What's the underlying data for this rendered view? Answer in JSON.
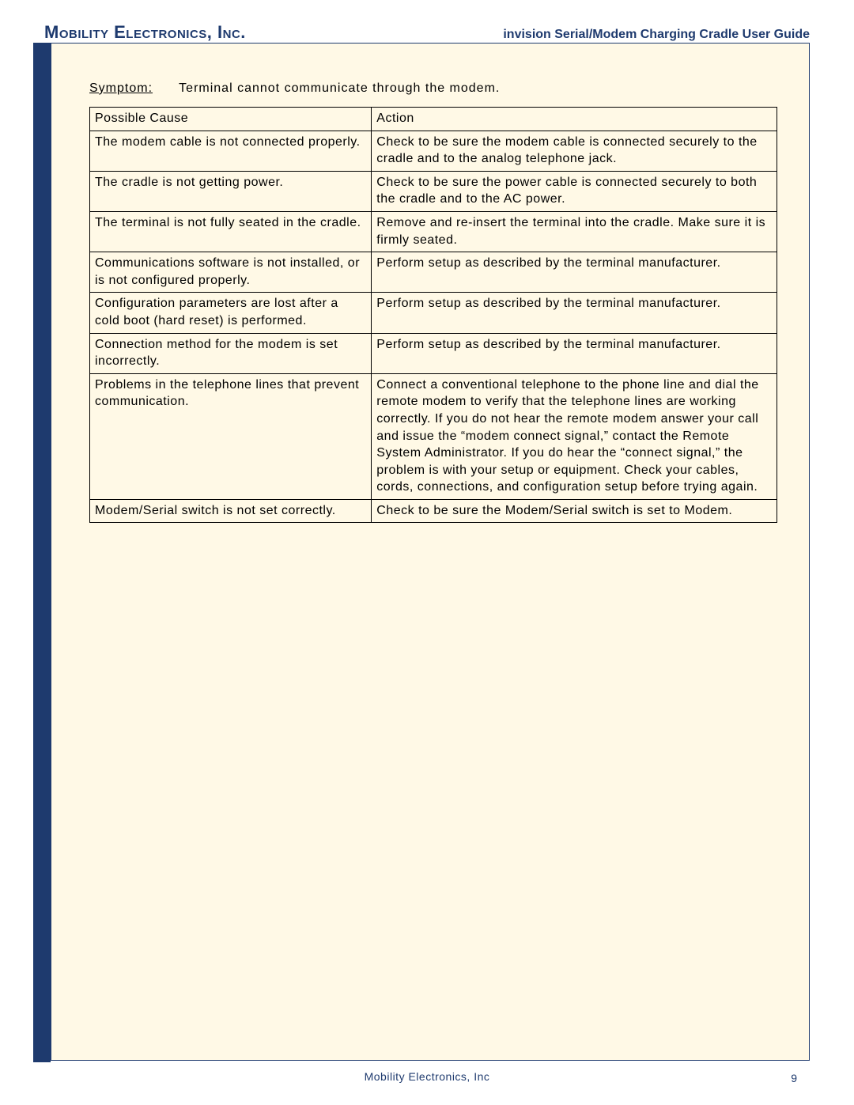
{
  "colors": {
    "brand_blue": "#1e3a6e",
    "cream_bg": "#fff9e6",
    "table_border": "#000000",
    "frame_border": "#1e3a6e",
    "text_black": "#000000"
  },
  "fonts": {
    "header_company_size": 22,
    "header_company_weight": "bold",
    "header_doc_size": 16,
    "header_doc_weight": "bold",
    "body_size": 16,
    "table_size": 16,
    "footer_size": 14,
    "page_num_size": 14
  },
  "header": {
    "company": "Mobility Electronics, Inc.",
    "doc_title": "invision Serial/Modem Charging Cradle User Guide"
  },
  "symptom": {
    "label": "Symptom:",
    "text": "Terminal cannot communicate through the modem."
  },
  "table": {
    "col_cause": "Possible Cause",
    "col_action": "Action",
    "rows": [
      {
        "cause": "The modem cable is not connected properly.",
        "action": "Check to be sure the modem cable is connected securely to the cradle and to the analog telephone jack."
      },
      {
        "cause": "The cradle is not getting power.",
        "action": "Check to be sure the power cable is connected securely to both the cradle and to the AC power."
      },
      {
        "cause": "The terminal is not fully seated in the cradle.",
        "action": "Remove and re-insert the terminal into the cradle. Make sure it is firmly seated."
      },
      {
        "cause": "Communications software is not installed, or is not configured properly.",
        "action": "Perform setup as described by the terminal manufacturer."
      },
      {
        "cause": "Configuration parameters are lost after a cold boot (hard reset) is performed.",
        "action": "Perform setup as described by the terminal manufacturer."
      },
      {
        "cause": "Connection method for the modem is set incorrectly.",
        "action": "Perform setup as described by the terminal manufacturer."
      },
      {
        "cause": "Problems in the telephone lines that prevent communication.",
        "action": "Connect a conventional telephone to the phone line and dial the remote modem to verify that the telephone lines are working correctly. If you do not hear the remote modem answer your call and issue the “modem connect signal,” contact the Remote System Administrator. If you do hear the “connect signal,” the problem is with your setup or equipment. Check your cables, cords, connections, and configuration setup before trying again."
      },
      {
        "cause": "Modem/Serial switch is not set correctly.",
        "action": "Check to be sure the Modem/Serial switch is set to Modem."
      }
    ]
  },
  "footer": {
    "company": "Mobility Electronics, Inc",
    "page": "9"
  }
}
